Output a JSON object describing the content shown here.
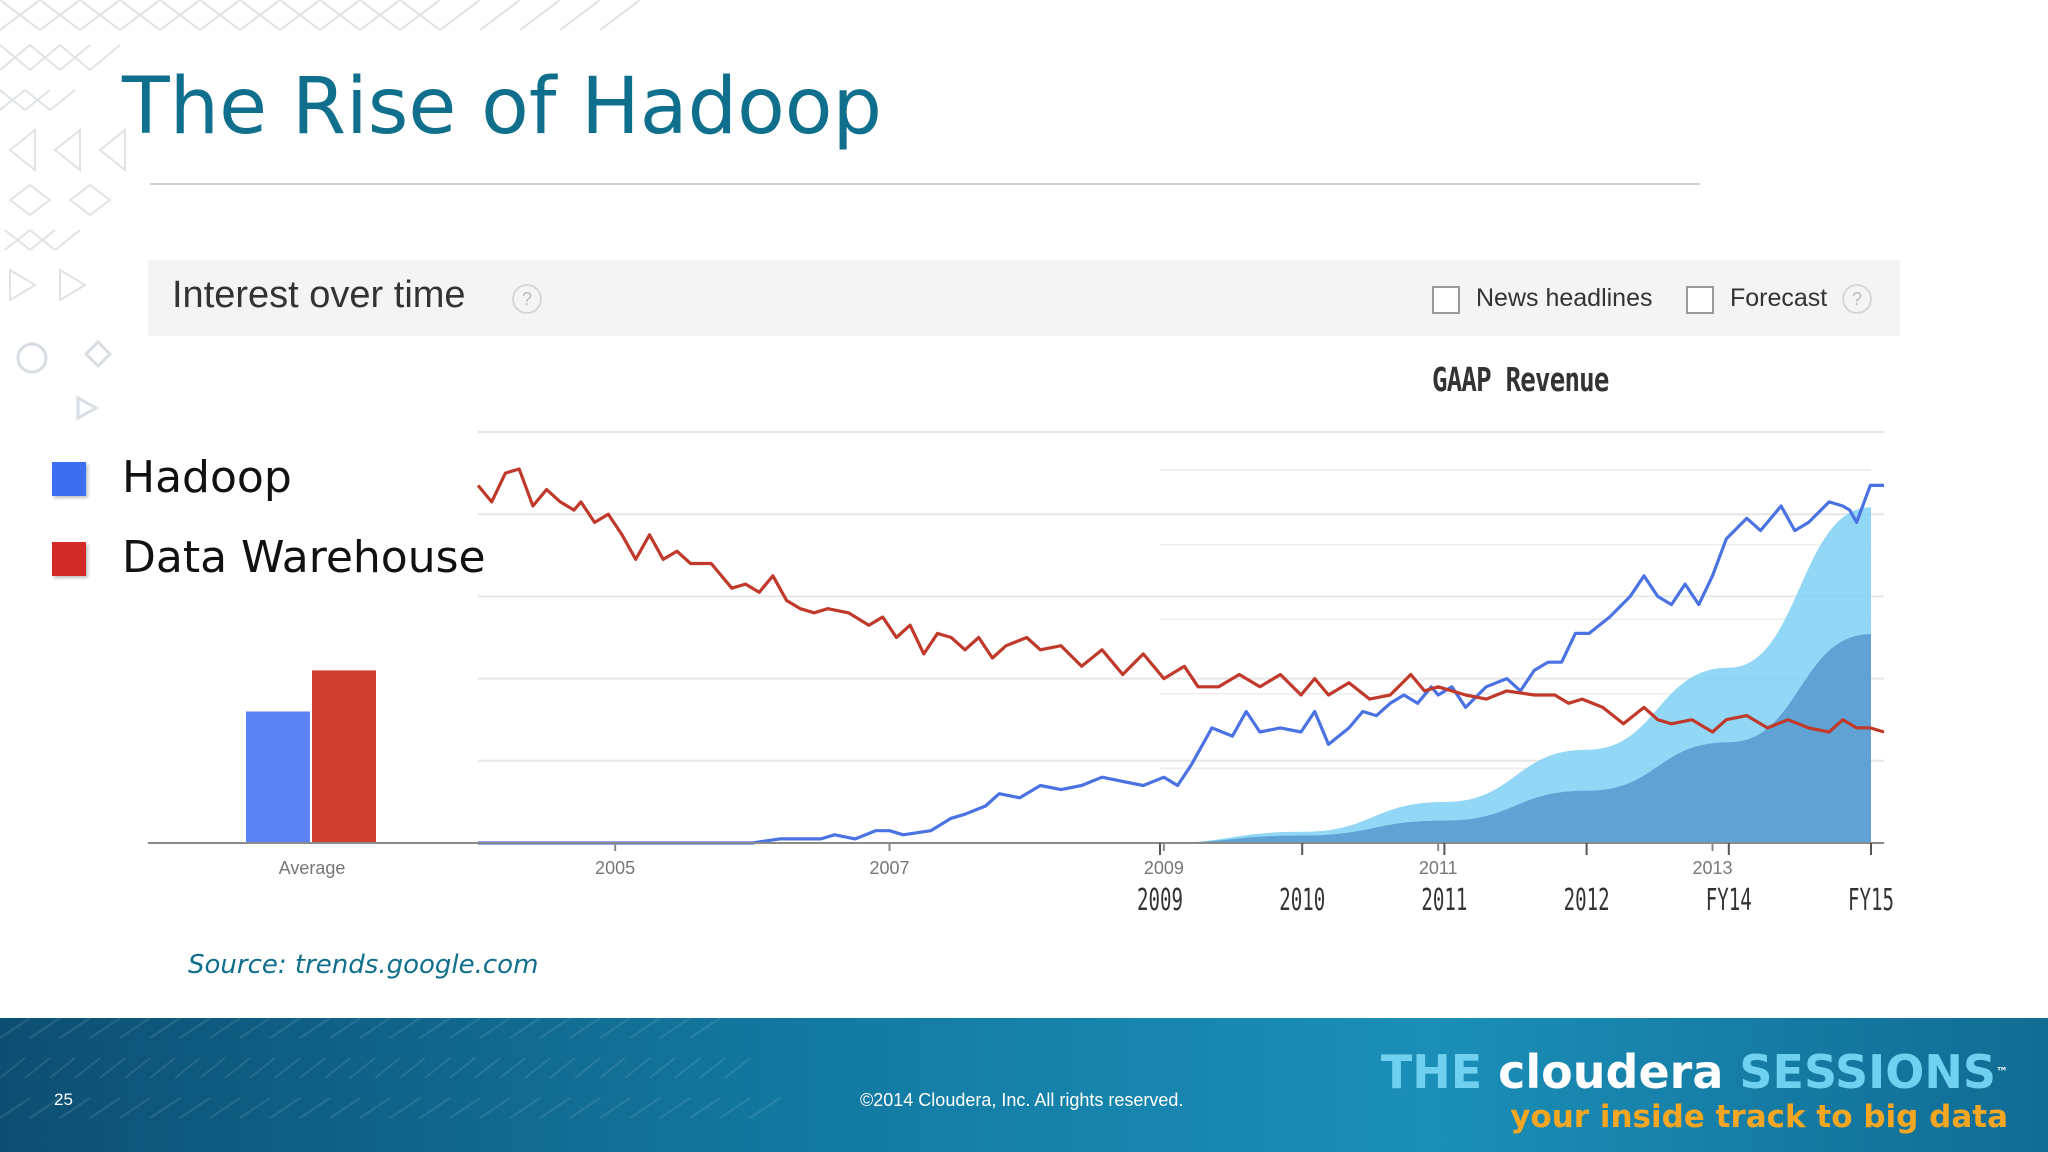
{
  "slide": {
    "title": "The Rise of Hadoop",
    "source": "Source: trends.google.com",
    "page_number": "25",
    "copyright": "©2014 Cloudera, Inc. All rights reserved."
  },
  "legend": [
    {
      "label": "Hadoop",
      "color": "#3b6ef0"
    },
    {
      "label": "Data Warehouse",
      "color": "#d22b27"
    }
  ],
  "header": {
    "title": "Interest over time",
    "help_icon": "?",
    "news_label": "News headlines",
    "forecast_label": "Forecast"
  },
  "brand": {
    "the": "THE",
    "cloudera": "cloudera",
    "sessions": "SESSIONS",
    "tm": "™",
    "tagline": "your inside track to big data"
  },
  "chart_data": [
    {
      "type": "line",
      "title": "Interest over time",
      "x_domain": [
        2004.0,
        2014.25
      ],
      "ylim": [
        0,
        100
      ],
      "grid": true,
      "x_ticks": [
        {
          "label": "2005",
          "x": 2005.0
        },
        {
          "label": "2007",
          "x": 2007.0
        },
        {
          "label": "2009",
          "x": 2009.0
        },
        {
          "label": "2011",
          "x": 2011.0
        },
        {
          "label": "2013",
          "x": 2013.0
        }
      ],
      "average": {
        "label": "Average",
        "values": [
          {
            "name": "Hadoop",
            "value": 32
          },
          {
            "name": "Data Warehouse",
            "value": 42
          }
        ]
      },
      "series": [
        {
          "name": "Hadoop",
          "color": "#4a72e3",
          "points": [
            [
              2004.0,
              0
            ],
            [
              2006.0,
              0
            ],
            [
              2006.2,
              1
            ],
            [
              2006.5,
              1
            ],
            [
              2006.6,
              2
            ],
            [
              2006.75,
              1
            ],
            [
              2006.9,
              3
            ],
            [
              2007.0,
              3
            ],
            [
              2007.1,
              2
            ],
            [
              2007.3,
              3
            ],
            [
              2007.45,
              6
            ],
            [
              2007.55,
              7
            ],
            [
              2007.7,
              9
            ],
            [
              2007.8,
              12
            ],
            [
              2007.95,
              11
            ],
            [
              2008.1,
              14
            ],
            [
              2008.25,
              13
            ],
            [
              2008.4,
              14
            ],
            [
              2008.55,
              16
            ],
            [
              2008.7,
              15
            ],
            [
              2008.85,
              14
            ],
            [
              2009.0,
              16
            ],
            [
              2009.1,
              14
            ],
            [
              2009.2,
              19
            ],
            [
              2009.35,
              28
            ],
            [
              2009.5,
              26
            ],
            [
              2009.6,
              32
            ],
            [
              2009.7,
              27
            ],
            [
              2009.85,
              28
            ],
            [
              2010.0,
              27
            ],
            [
              2010.1,
              32
            ],
            [
              2010.2,
              24
            ],
            [
              2010.35,
              28
            ],
            [
              2010.45,
              32
            ],
            [
              2010.55,
              31
            ],
            [
              2010.65,
              34
            ],
            [
              2010.75,
              36
            ],
            [
              2010.85,
              34
            ],
            [
              2010.95,
              38
            ],
            [
              2011.0,
              36
            ],
            [
              2011.1,
              38
            ],
            [
              2011.2,
              33
            ],
            [
              2011.35,
              38
            ],
            [
              2011.5,
              40
            ],
            [
              2011.6,
              37
            ],
            [
              2011.7,
              42
            ],
            [
              2011.8,
              44
            ],
            [
              2011.9,
              44
            ],
            [
              2012.0,
              51
            ],
            [
              2012.1,
              51
            ],
            [
              2012.25,
              55
            ],
            [
              2012.4,
              60
            ],
            [
              2012.5,
              65
            ],
            [
              2012.6,
              60
            ],
            [
              2012.7,
              58
            ],
            [
              2012.8,
              63
            ],
            [
              2012.9,
              58
            ],
            [
              2013.0,
              65
            ],
            [
              2013.1,
              74
            ],
            [
              2013.25,
              79
            ],
            [
              2013.35,
              76
            ],
            [
              2013.5,
              82
            ],
            [
              2013.6,
              76
            ],
            [
              2013.7,
              78
            ],
            [
              2013.85,
              83
            ],
            [
              2013.95,
              82
            ],
            [
              2014.0,
              81
            ],
            [
              2014.05,
              78
            ],
            [
              2014.15,
              87
            ],
            [
              2014.25,
              87
            ]
          ]
        },
        {
          "name": "Data Warehouse",
          "color": "#c0392b",
          "points": [
            [
              2004.0,
              87
            ],
            [
              2004.1,
              83
            ],
            [
              2004.2,
              90
            ],
            [
              2004.3,
              91
            ],
            [
              2004.4,
              82
            ],
            [
              2004.5,
              86
            ],
            [
              2004.6,
              83
            ],
            [
              2004.7,
              81
            ],
            [
              2004.75,
              83
            ],
            [
              2004.85,
              78
            ],
            [
              2004.95,
              80
            ],
            [
              2005.05,
              75
            ],
            [
              2005.15,
              69
            ],
            [
              2005.25,
              75
            ],
            [
              2005.35,
              69
            ],
            [
              2005.45,
              71
            ],
            [
              2005.55,
              68
            ],
            [
              2005.7,
              68
            ],
            [
              2005.85,
              62
            ],
            [
              2005.95,
              63
            ],
            [
              2006.05,
              61
            ],
            [
              2006.15,
              65
            ],
            [
              2006.25,
              59
            ],
            [
              2006.35,
              57
            ],
            [
              2006.45,
              56
            ],
            [
              2006.55,
              57
            ],
            [
              2006.7,
              56
            ],
            [
              2006.85,
              53
            ],
            [
              2006.95,
              55
            ],
            [
              2007.05,
              50
            ],
            [
              2007.15,
              53
            ],
            [
              2007.25,
              46
            ],
            [
              2007.35,
              51
            ],
            [
              2007.45,
              50
            ],
            [
              2007.55,
              47
            ],
            [
              2007.65,
              50
            ],
            [
              2007.75,
              45
            ],
            [
              2007.85,
              48
            ],
            [
              2008.0,
              50
            ],
            [
              2008.1,
              47
            ],
            [
              2008.25,
              48
            ],
            [
              2008.4,
              43
            ],
            [
              2008.55,
              47
            ],
            [
              2008.7,
              41
            ],
            [
              2008.85,
              46
            ],
            [
              2009.0,
              40
            ],
            [
              2009.15,
              43
            ],
            [
              2009.25,
              38
            ],
            [
              2009.4,
              38
            ],
            [
              2009.55,
              41
            ],
            [
              2009.7,
              38
            ],
            [
              2009.85,
              41
            ],
            [
              2010.0,
              36
            ],
            [
              2010.1,
              40
            ],
            [
              2010.2,
              36
            ],
            [
              2010.35,
              39
            ],
            [
              2010.5,
              35
            ],
            [
              2010.65,
              36
            ],
            [
              2010.8,
              41
            ],
            [
              2010.9,
              37
            ],
            [
              2011.0,
              38
            ],
            [
              2011.2,
              36
            ],
            [
              2011.35,
              35
            ],
            [
              2011.5,
              37
            ],
            [
              2011.7,
              36
            ],
            [
              2011.85,
              36
            ],
            [
              2011.95,
              34
            ],
            [
              2012.05,
              35
            ],
            [
              2012.2,
              33
            ],
            [
              2012.35,
              29
            ],
            [
              2012.5,
              33
            ],
            [
              2012.6,
              30
            ],
            [
              2012.7,
              29
            ],
            [
              2012.85,
              30
            ],
            [
              2013.0,
              27
            ],
            [
              2013.1,
              30
            ],
            [
              2013.25,
              31
            ],
            [
              2013.4,
              28
            ],
            [
              2013.55,
              30
            ],
            [
              2013.7,
              28
            ],
            [
              2013.85,
              27
            ],
            [
              2013.95,
              30
            ],
            [
              2014.05,
              28
            ],
            [
              2014.15,
              28
            ],
            [
              2014.25,
              27
            ]
          ]
        }
      ]
    },
    {
      "type": "area",
      "title": "GAAP Revenue",
      "categories": [
        "2009",
        "2010",
        "2011",
        "2012",
        "FY14",
        "FY15"
      ],
      "ylim": [
        0,
        100
      ],
      "series": [
        {
          "name": "GAAP Revenue (light)",
          "color": "#7fd1f5",
          "values": [
            0,
            3,
            11,
            25,
            47,
            90
          ]
        },
        {
          "name": "GAAP Revenue (dark)",
          "color": "#4a8cc5",
          "values": [
            0,
            2,
            6,
            14,
            27,
            56
          ]
        }
      ]
    }
  ]
}
